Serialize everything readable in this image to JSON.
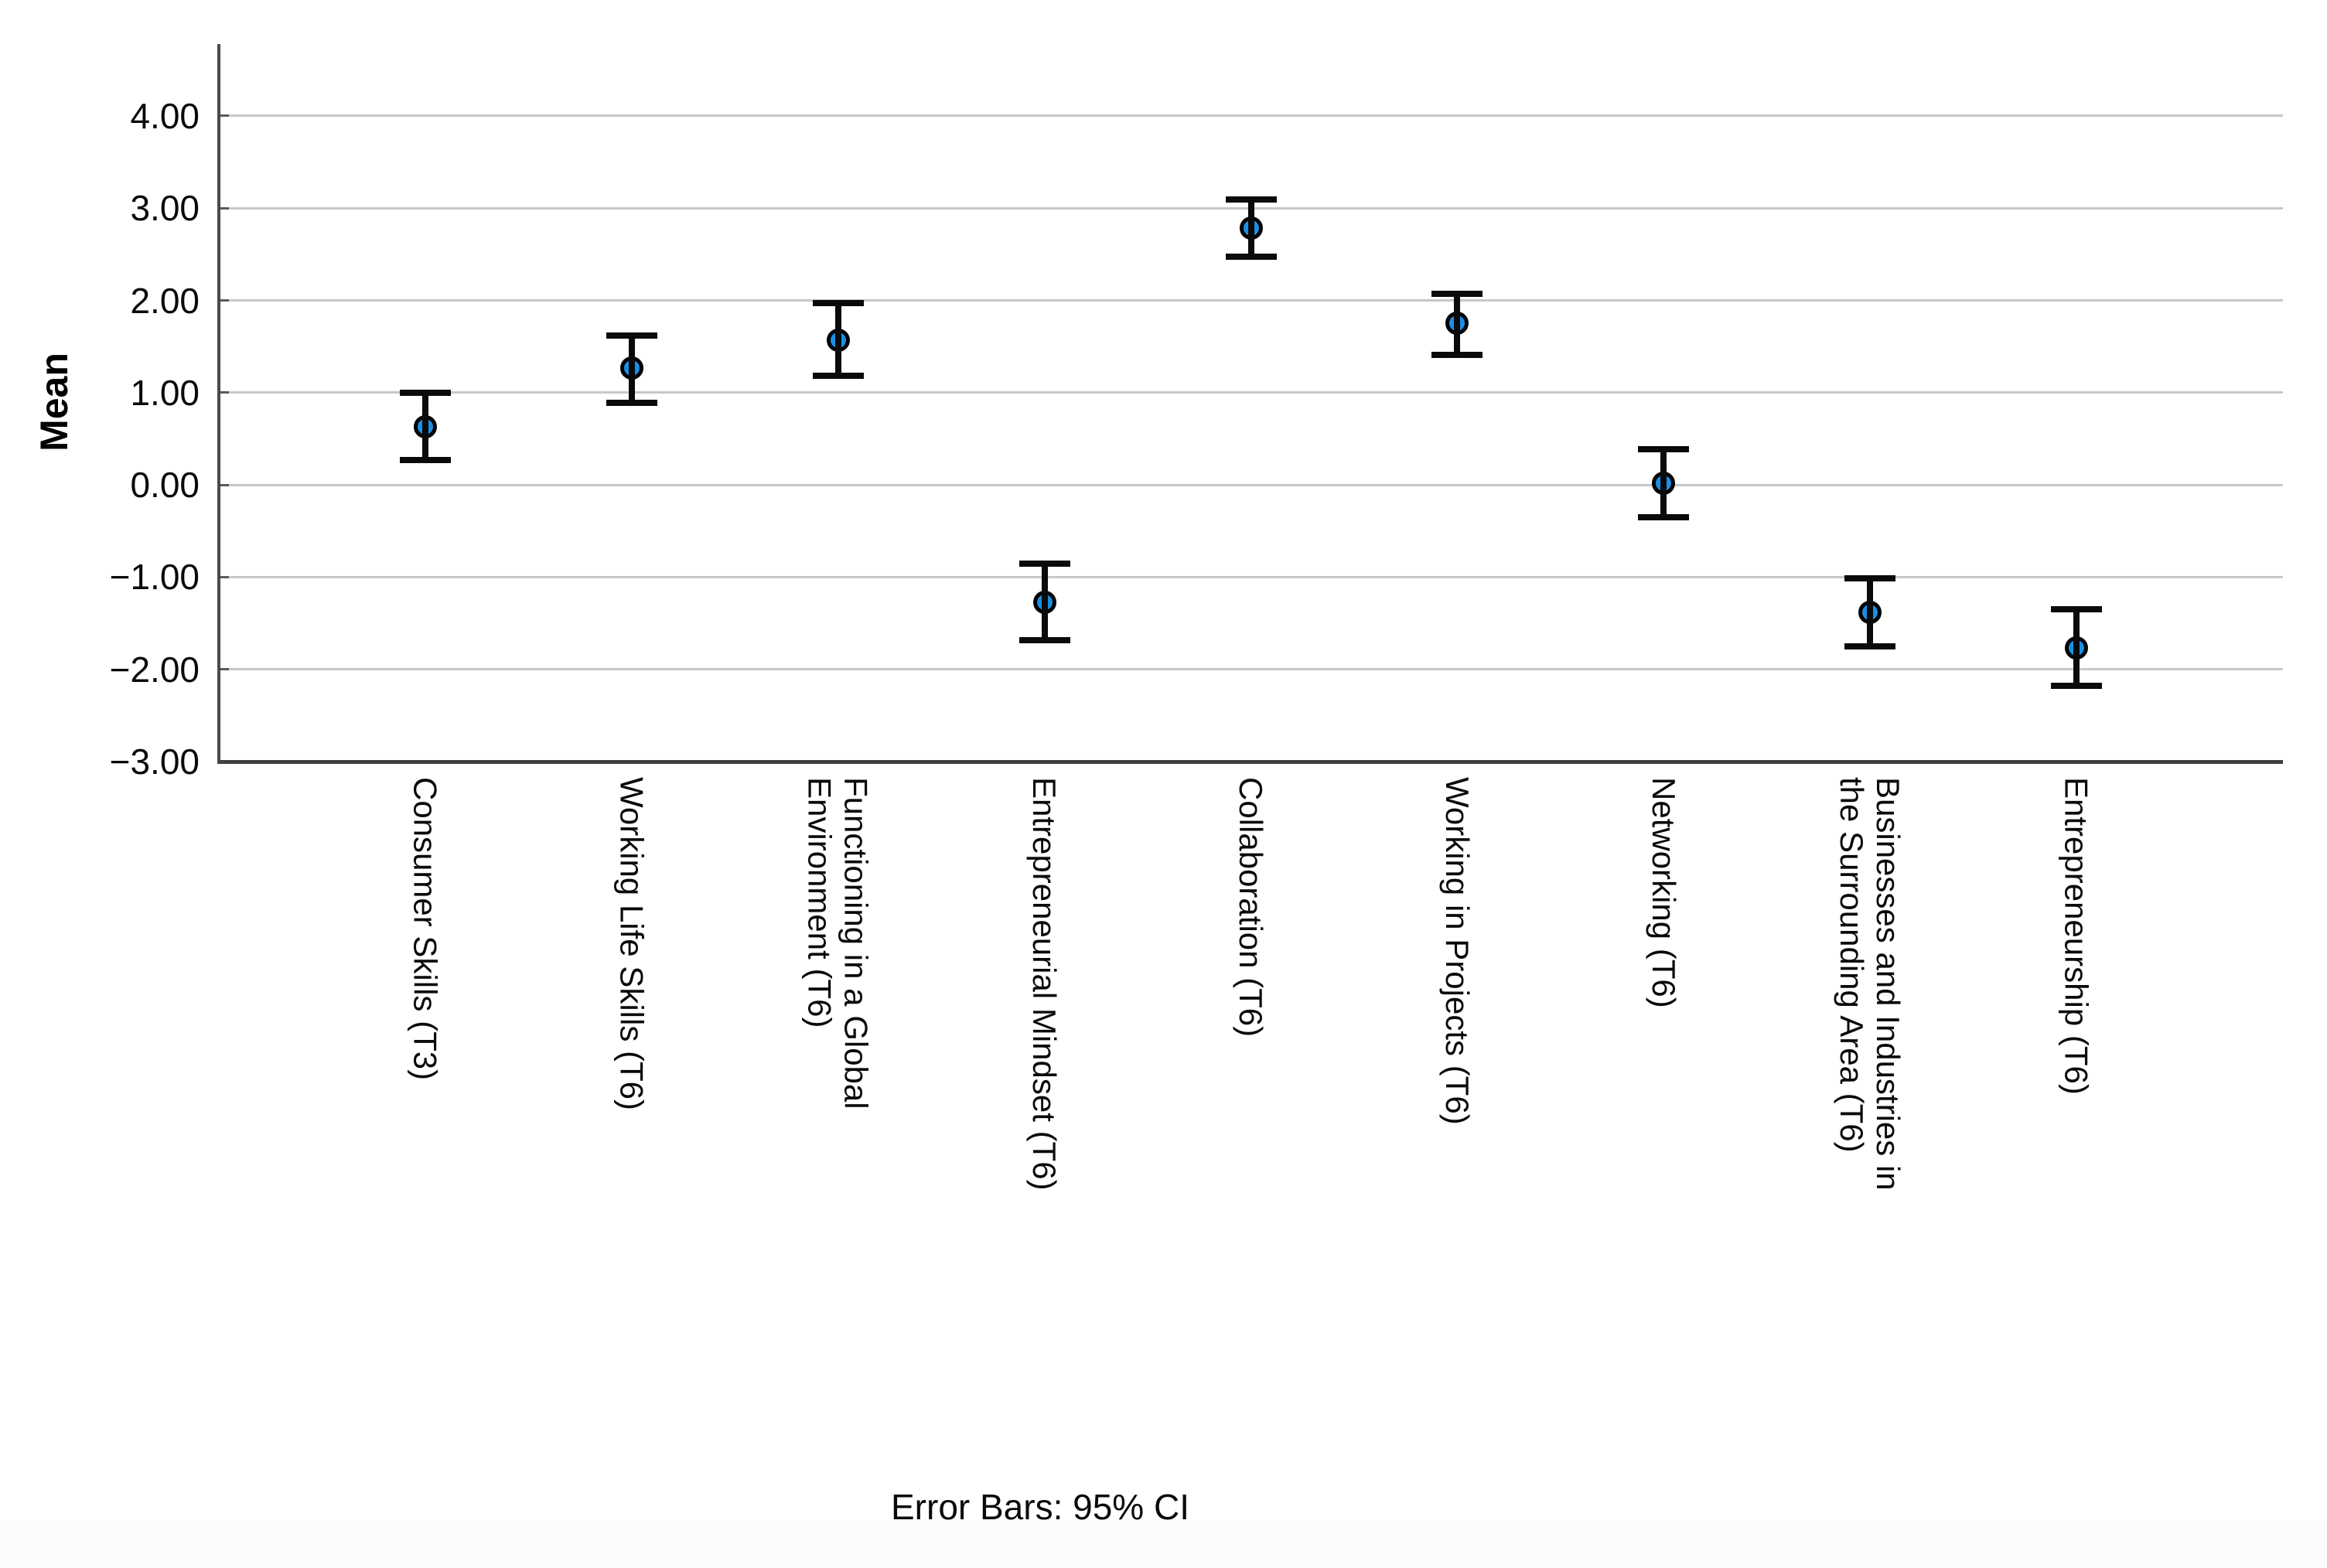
{
  "chart_data": {
    "type": "scatter",
    "subtype": "error-bar-plot",
    "title": "",
    "ylabel": "Mean",
    "xlabel": "",
    "caption": "Error Bars: 95% CI",
    "legend": "none",
    "grid": "horizontal",
    "ylim": [
      -3.0,
      4.78
    ],
    "y_tick_values": [
      4,
      3,
      2,
      1,
      0,
      -1,
      -2,
      -3
    ],
    "y_tick_labels": [
      "4.00",
      "3.00",
      "2.00",
      "1.00",
      "0.00",
      "−1.00",
      "−2.00",
      "−3.00"
    ],
    "categories": [
      "Consumer Skills (T3)",
      "Working Life Skills (T6)",
      "Functioning in a Global Environment (T6)",
      "Entrepreneurial Mindset (T6)",
      "Collaboration (T6)",
      "Working in Projects (T6)",
      "Networking (T6)",
      "Businesses and Industries in the Surrounding Area (T6)",
      "Entrepreneurship (T6)"
    ],
    "points": [
      {
        "label": "Consumer Skills (T3)",
        "mean": 0.63,
        "ci_low": 0.27,
        "ci_high": 1.0
      },
      {
        "label": "Working Life Skills (T6)",
        "mean": 1.27,
        "ci_low": 0.89,
        "ci_high": 1.62
      },
      {
        "label": "Functioning in a Global Environment (T6)",
        "mean": 1.57,
        "ci_low": 1.18,
        "ci_high": 1.97
      },
      {
        "label": "Entrepreneurial Mindset (T6)",
        "mean": -1.27,
        "ci_low": -1.68,
        "ci_high": -0.85
      },
      {
        "label": "Collaboration (T6)",
        "mean": 2.78,
        "ci_low": 2.47,
        "ci_high": 3.09
      },
      {
        "label": "Working in Projects (T6)",
        "mean": 1.75,
        "ci_low": 1.41,
        "ci_high": 2.07
      },
      {
        "label": "Networking (T6)",
        "mean": 0.02,
        "ci_low": -0.35,
        "ci_high": 0.39
      },
      {
        "label": "Businesses and Industries in the Surrounding Area (T6)",
        "mean": -1.38,
        "ci_low": -1.75,
        "ci_high": -1.01
      },
      {
        "label": "Entrepreneurship (T6)",
        "mean": -1.77,
        "ci_low": -2.18,
        "ci_high": -1.35
      }
    ],
    "colors": {
      "marker_fill": "#1a8fe3",
      "marker_stroke": "#000000",
      "error_bar": "#0a0a0a",
      "gridline": "#c8c8c8",
      "axis": "#4a4a4a",
      "text": "#0a0a0a"
    }
  }
}
